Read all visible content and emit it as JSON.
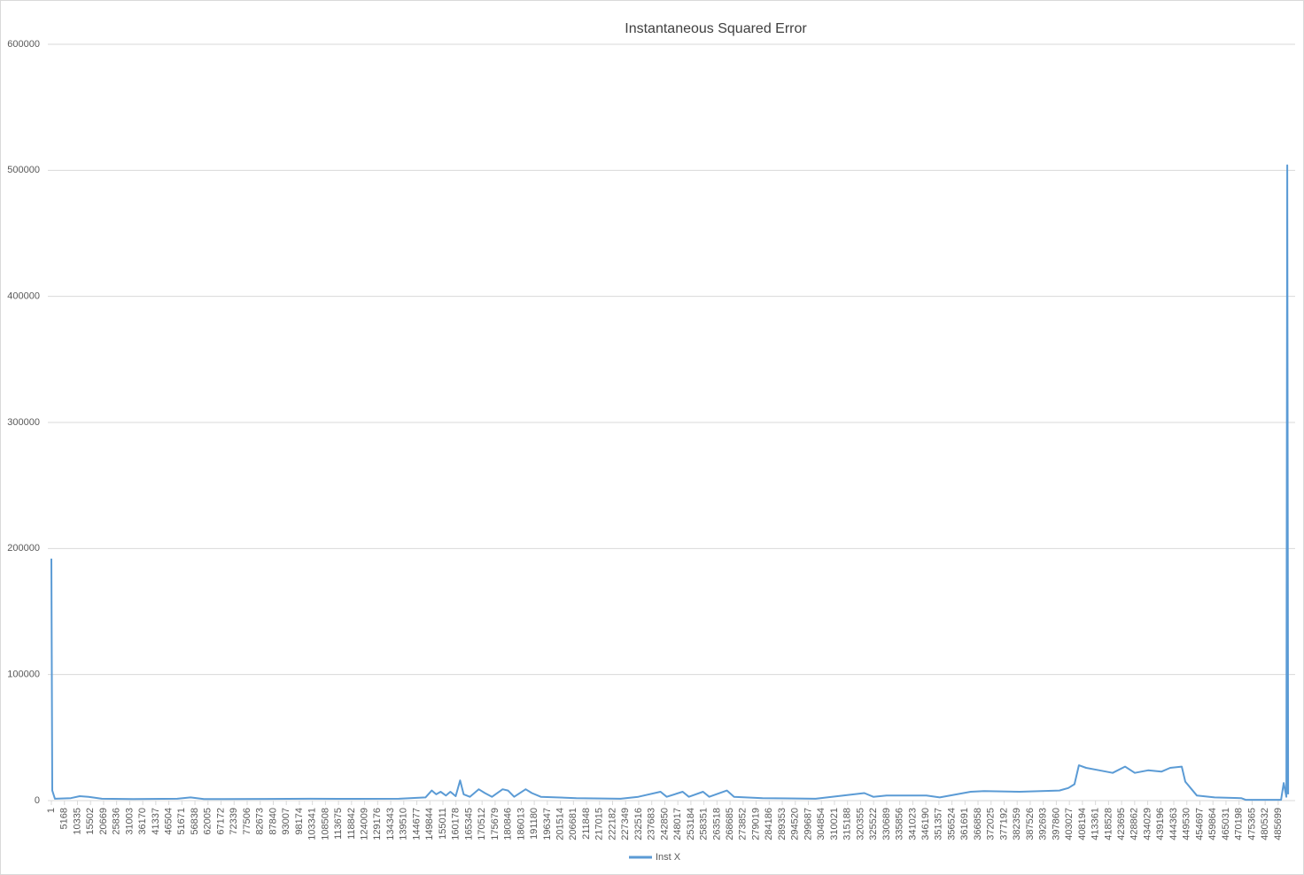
{
  "chart_data": {
    "type": "line",
    "title": "Instantaneous Squared Error",
    "x": [
      1,
      352,
      1405,
      7723,
      11233,
      14743,
      20008,
      32293,
      49843,
      55108,
      60373,
      84943,
      102493,
      120043,
      137593,
      148123,
      150580,
      152335,
      154090,
      156196,
      157951,
      160057,
      161812,
      163216,
      165673,
      169183,
      171640,
      174448,
      178660,
      180766,
      183223,
      187786,
      190243,
      193753,
      207793,
      225343,
      232363,
      241138,
      243595,
      249913,
      252370,
      257986,
      260443,
      267463,
      270271,
      281503,
      302563,
      321868,
      325378,
      330643,
      346438,
      351703,
      363988,
      369253,
      383293,
      399088,
      402598,
      405055,
      406810,
      409618,
      414883,
      420148,
      425062,
      428923,
      434188,
      439453,
      442963,
      447526,
      448930,
      451036,
      453493,
      460513,
      471043,
      472798,
      486838,
      487891,
      488944,
      489295,
      489646
    ],
    "series": [
      {
        "name": "Inst X",
        "color": "#5b9bd5",
        "values": [
          192000,
          8000,
          1500,
          2000,
          3500,
          3000,
          1500,
          1200,
          1500,
          2500,
          1200,
          1300,
          1500,
          1400,
          1500,
          2500,
          8000,
          5000,
          7000,
          4000,
          7000,
          3500,
          16000,
          5000,
          3000,
          9000,
          6000,
          3000,
          9000,
          8000,
          3000,
          9000,
          6000,
          3000,
          2000,
          1500,
          3000,
          7000,
          3000,
          7000,
          3000,
          7000,
          3000,
          8000,
          3000,
          2000,
          1500,
          6000,
          3000,
          4000,
          4000,
          2500,
          7000,
          7500,
          7000,
          8000,
          10000,
          13000,
          28000,
          26000,
          24000,
          22000,
          27000,
          22000,
          24000,
          23000,
          26000,
          27000,
          15000,
          10000,
          4000,
          2500,
          2000,
          600,
          600,
          14000,
          3000,
          504000,
          5000
        ]
      }
    ],
    "xlim": [
      1,
      491000
    ],
    "xticks": [
      1,
      5168,
      10335,
      15502,
      20669,
      25836,
      31003,
      36170,
      41337,
      46504,
      51671,
      56838,
      62005,
      67172,
      72339,
      77506,
      82673,
      87840,
      93007,
      98174,
      103341,
      108508,
      113675,
      118842,
      124009,
      129176,
      134343,
      139510,
      144677,
      149844,
      155011,
      160178,
      165345,
      170512,
      175679,
      180846,
      186013,
      191180,
      196347,
      201514,
      206681,
      211848,
      217015,
      222182,
      227349,
      232516,
      237683,
      242850,
      248017,
      253184,
      258351,
      263518,
      268685,
      273852,
      279019,
      284186,
      289353,
      294520,
      299687,
      304854,
      310021,
      315188,
      320355,
      325522,
      330689,
      335856,
      341023,
      346190,
      351357,
      356524,
      361691,
      366858,
      372025,
      377192,
      382359,
      387526,
      392693,
      397860,
      403027,
      408194,
      413361,
      418528,
      423695,
      428862,
      434029,
      439196,
      444363,
      449530,
      454697,
      459864,
      465031,
      470198,
      475365,
      480532,
      485699
    ],
    "ylim": [
      0,
      600000
    ],
    "yticks": [
      0,
      100000,
      200000,
      300000,
      400000,
      500000,
      600000
    ],
    "grid": true,
    "legend": "bottom"
  }
}
